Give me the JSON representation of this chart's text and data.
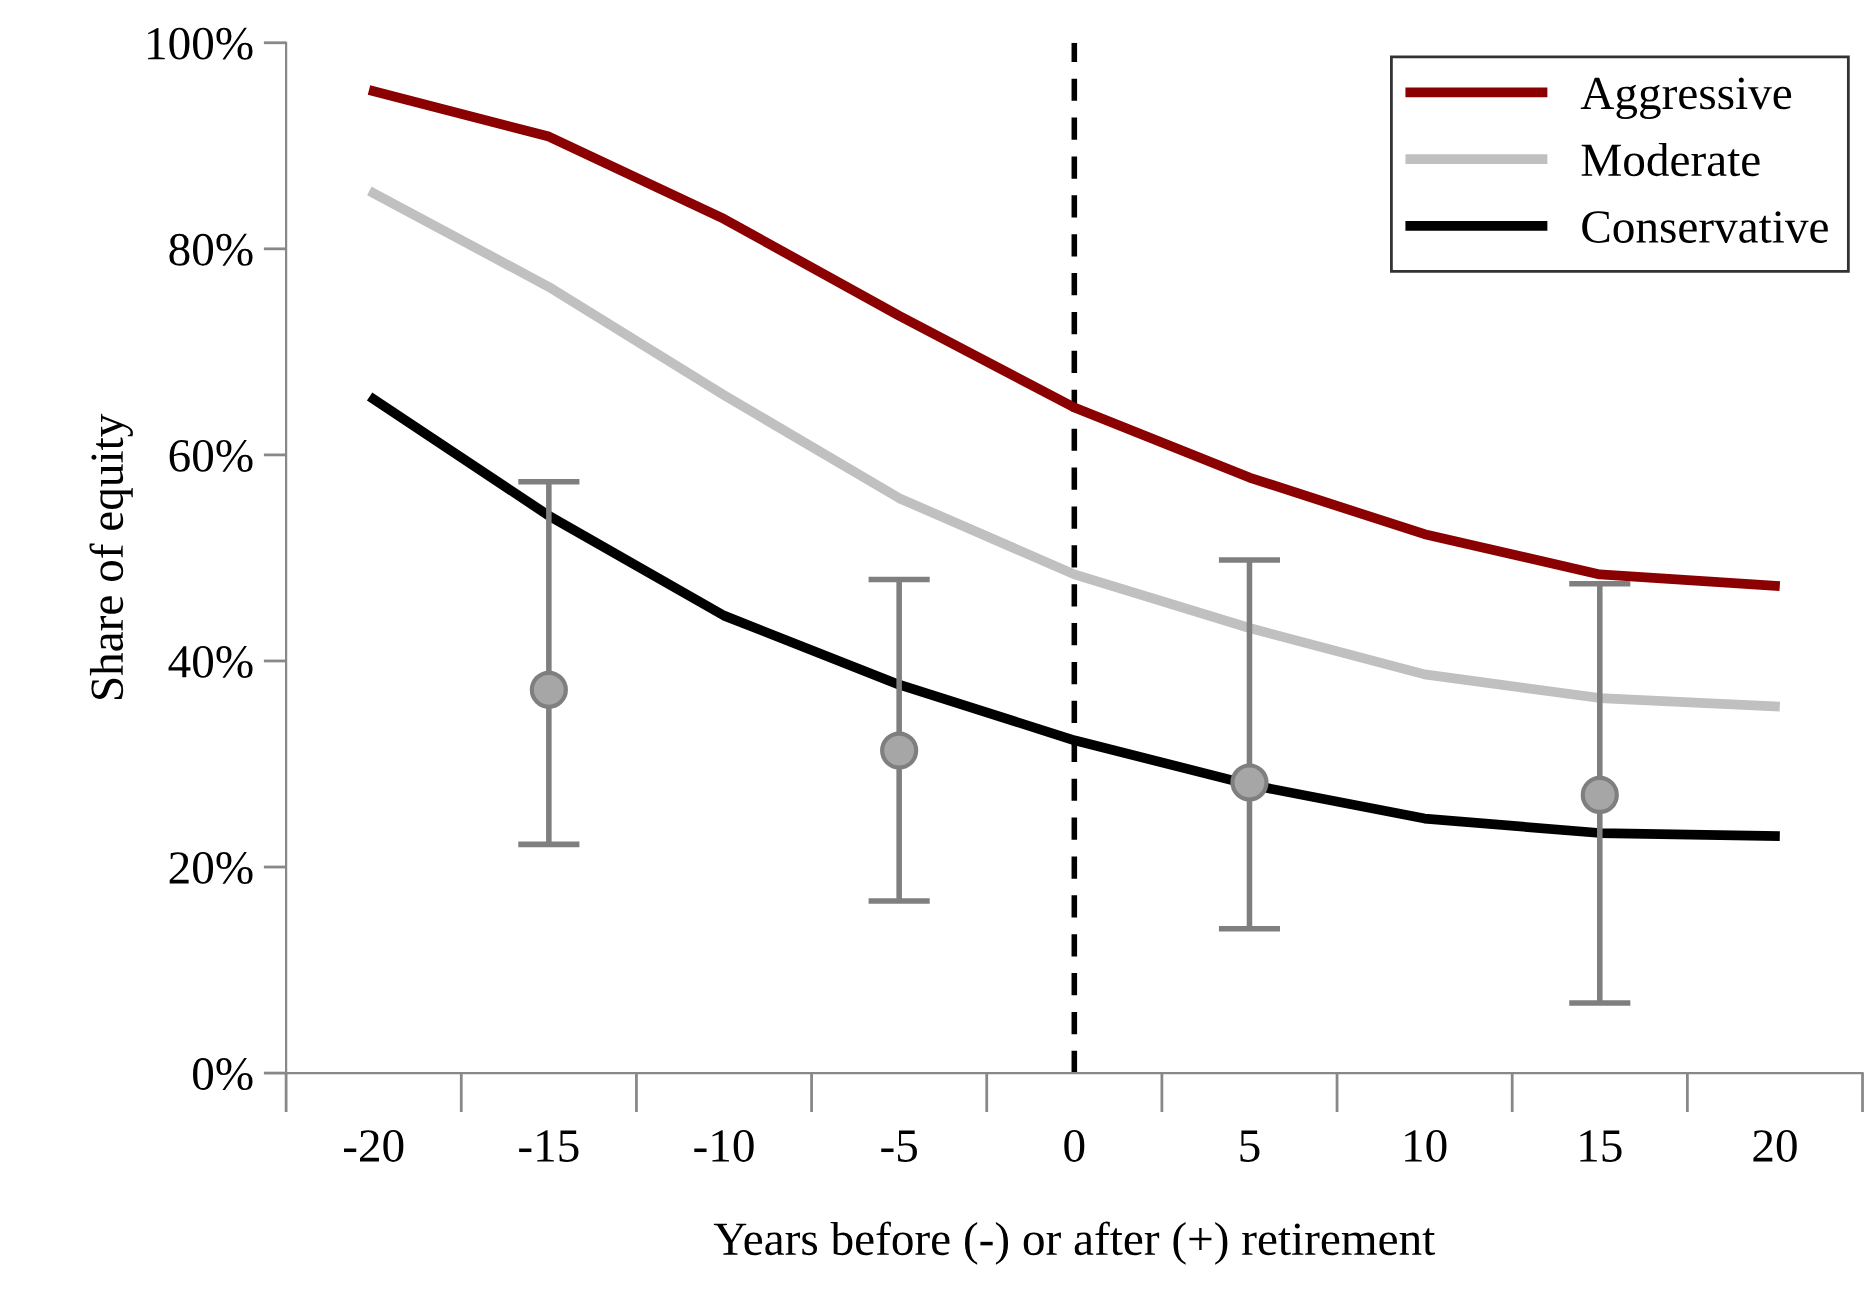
{
  "chart_data": {
    "type": "line",
    "xlabel": "Years before (-) or after (+) retirement",
    "ylabel": "Share of equity",
    "x": [
      -20,
      -15,
      -10,
      -5,
      0,
      5,
      10,
      15,
      20
    ],
    "series": [
      {
        "name": "Aggressive",
        "color": "#8b0000",
        "values": [
          95.3,
          90.9,
          82.9,
          73.5,
          64.6,
          57.8,
          52.3,
          48.4,
          47.3
        ]
      },
      {
        "name": "Moderate",
        "color": "#c0c0c0",
        "values": [
          85.4,
          76.3,
          65.8,
          55.8,
          48.4,
          43.2,
          38.7,
          36.4,
          35.6
        ]
      },
      {
        "name": "Conservative",
        "color": "#000000",
        "values": [
          65.4,
          54.1,
          44.4,
          37.7,
          32.3,
          28.0,
          24.7,
          23.3,
          23.0
        ]
      },
      {
        "type": "scatter",
        "color": "#a6a6a6",
        "x": [
          -15,
          -5,
          5,
          15
        ],
        "values": [
          37.2,
          31.3,
          28.2,
          27.0
        ],
        "errors": [
          [
            22.2,
            57.4
          ],
          [
            16.7,
            47.9
          ],
          [
            14.0,
            49.8
          ],
          [
            6.8,
            47.5
          ]
        ],
        "marker": "circle"
      }
    ],
    "xlim": [
      -22.5,
      22.5
    ],
    "xticks": [
      -20,
      -15,
      -10,
      -5,
      0,
      5,
      10,
      15,
      20
    ],
    "ylim": [
      0,
      100
    ],
    "yticks": [
      {
        "value": 0,
        "label": "0%"
      },
      {
        "value": 20,
        "label": "20%"
      },
      {
        "value": 40,
        "label": "40%"
      },
      {
        "value": 60,
        "label": "60%"
      },
      {
        "value": 80,
        "label": "80%"
      },
      {
        "value": 100,
        "label": "100%"
      }
    ],
    "ref_lines": [
      {
        "axis": "x",
        "value": 0,
        "color": "#000000",
        "line_style": "dashed"
      }
    ],
    "grid": false,
    "legend": "top right",
    "marker": "none",
    "line_style": "solid"
  }
}
